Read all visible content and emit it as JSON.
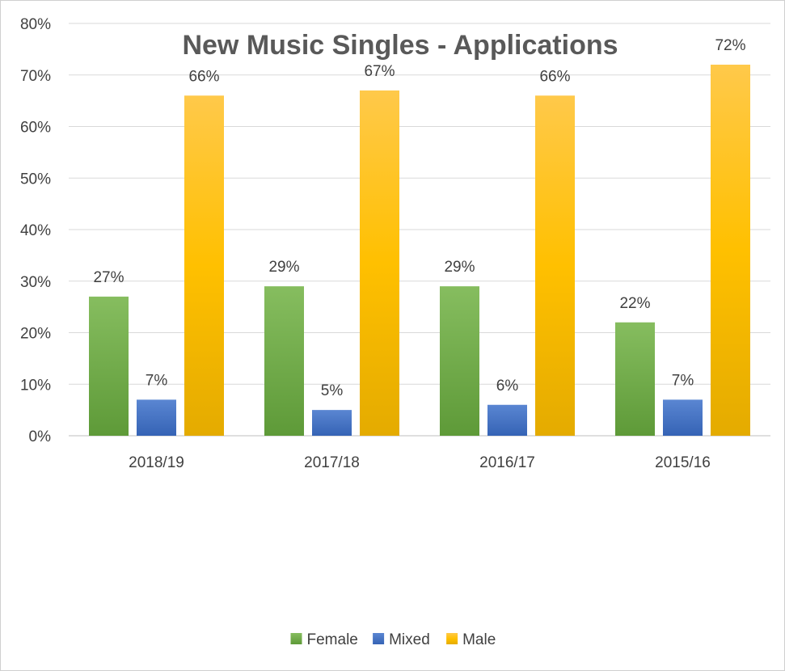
{
  "chart_data": {
    "type": "bar",
    "title": "New Music Singles - Applications",
    "categories": [
      "2018/19",
      "2017/18",
      "2016/17",
      "2015/16"
    ],
    "series": [
      {
        "name": "Female",
        "color": "#70ad47",
        "values": [
          27,
          29,
          29,
          22
        ],
        "labels": [
          "27%",
          "29%",
          "29%",
          "22%"
        ]
      },
      {
        "name": "Mixed",
        "color": "#4472c4",
        "values": [
          7,
          5,
          6,
          7
        ],
        "labels": [
          "7%",
          "5%",
          "6%",
          "7%"
        ]
      },
      {
        "name": "Male",
        "color": "#ffc000",
        "values": [
          66,
          67,
          66,
          72
        ],
        "labels": [
          "66%",
          "67%",
          "66%",
          "72%"
        ]
      }
    ],
    "y_ticks": [
      "0%",
      "10%",
      "20%",
      "30%",
      "40%",
      "50%",
      "60%",
      "70%",
      "80%"
    ],
    "ylim": [
      0,
      80
    ],
    "grid": true,
    "legend": "bottom"
  }
}
